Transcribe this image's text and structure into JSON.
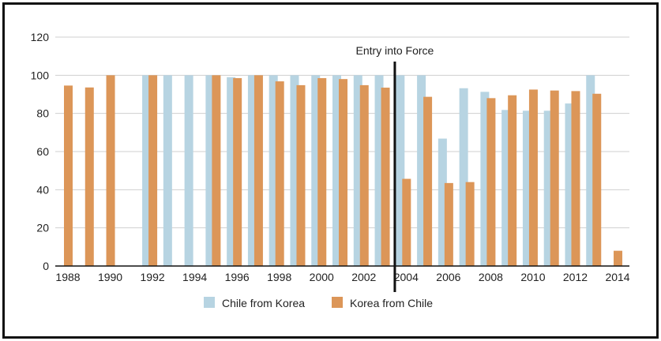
{
  "chart_data": {
    "type": "bar",
    "title": "",
    "xlabel": "",
    "ylabel": "",
    "ylim": [
      0,
      120
    ],
    "yticks": [
      0,
      20,
      40,
      60,
      80,
      100,
      120
    ],
    "xtick_labels": [
      "1988",
      "1990",
      "1992",
      "1994",
      "1996",
      "1998",
      "2000",
      "2002",
      "2004",
      "2006",
      "2008",
      "2010",
      "2012",
      "2014"
    ],
    "grid": true,
    "legend_placement": "bottom",
    "categories": [
      1988,
      1989,
      1990,
      1991,
      1992,
      1993,
      1994,
      1995,
      1996,
      1997,
      1998,
      1999,
      2000,
      2001,
      2002,
      2003,
      2004,
      2005,
      2006,
      2007,
      2008,
      2009,
      2010,
      2011,
      2012,
      2013,
      2014
    ],
    "series": [
      {
        "name": "Chile from Korea",
        "color": "#b7d4e2",
        "values": [
          null,
          null,
          null,
          null,
          100,
          100,
          100,
          100,
          99,
          100,
          100,
          100,
          100,
          100,
          100,
          100,
          100,
          100,
          66.8,
          93.2,
          91.3,
          81.8,
          81.4,
          81.4,
          85.2,
          100,
          null
        ]
      },
      {
        "name": "Korea from Chile",
        "color": "#dc9658",
        "values": [
          94.6,
          93.6,
          100,
          null,
          100,
          null,
          null,
          100,
          98.5,
          100,
          96.8,
          94.8,
          98.5,
          98,
          94.8,
          93.5,
          45.7,
          88.7,
          43.5,
          44,
          88,
          89.5,
          92.5,
          92,
          91.7,
          90.3,
          8
        ]
      }
    ],
    "annotation": {
      "label": "Entry into Force",
      "x": 2003.5
    }
  }
}
